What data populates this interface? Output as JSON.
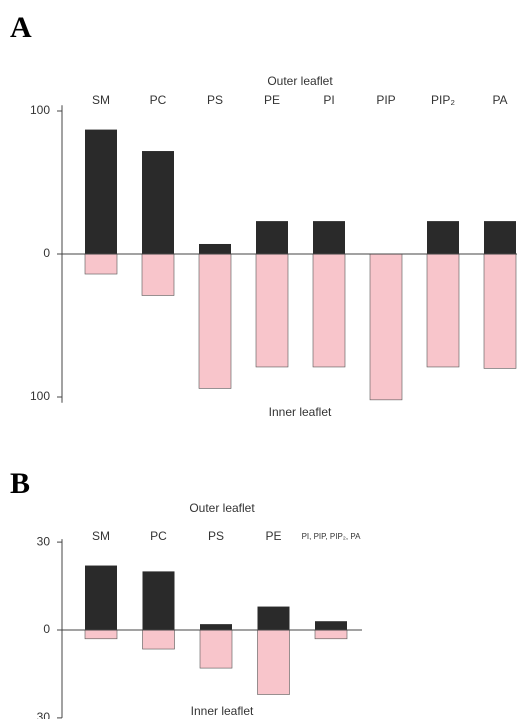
{
  "chart_data": [
    {
      "type": "bar",
      "title": "A",
      "categories": [
        "SM",
        "PC",
        "PS",
        "PE",
        "PI",
        "PIP",
        "PIP₂",
        "PA"
      ],
      "series": [
        {
          "name": "Outer leaflet",
          "color": "#2a2a2a",
          "values": [
            87,
            72,
            7,
            23,
            23,
            0,
            23,
            23
          ]
        },
        {
          "name": "Inner leaflet",
          "color": "#f8c5cb",
          "values": [
            -14,
            -29,
            -94,
            -79,
            -79,
            -102,
            -79,
            -80
          ]
        }
      ],
      "ylim": [
        -104,
        104
      ],
      "yticks": [
        {
          "value": -100,
          "label": "100"
        },
        0,
        100
      ]
    },
    {
      "type": "bar",
      "title": "B",
      "categories": [
        "SM",
        "PC",
        "PS",
        "PE",
        "PI, PIP, PIP₂, PA"
      ],
      "series": [
        {
          "name": "Outer leaflet",
          "color": "#2a2a2a",
          "values": [
            22,
            20,
            2,
            8,
            3
          ]
        },
        {
          "name": "Inner leaflet",
          "color": "#f8c5cb",
          "values": [
            -3,
            -6.5,
            -13,
            -22,
            -3
          ]
        }
      ],
      "ylim": [
        -30,
        31
      ],
      "yticks": [
        {
          "value": -30,
          "label": "30"
        },
        0,
        30
      ]
    }
  ]
}
